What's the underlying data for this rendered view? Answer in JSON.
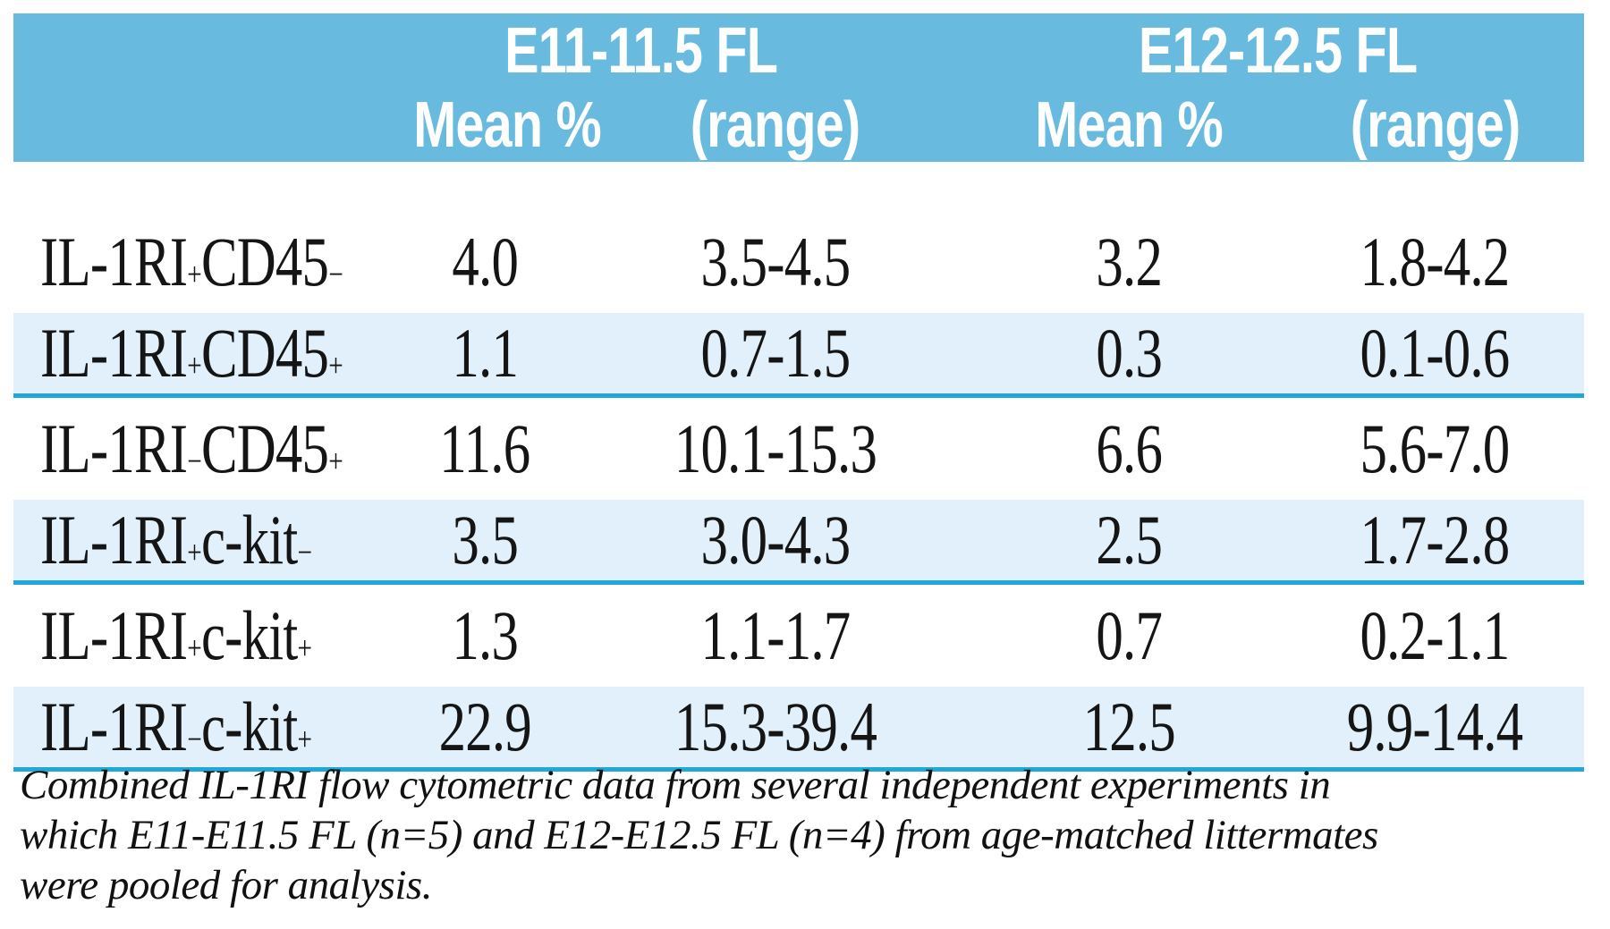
{
  "colors": {
    "header_bg": "#68bade",
    "header_text": "#ffffff",
    "stripe_bg": "#e1f0fa",
    "stripe_rule": "#21a7d8",
    "body_text": "#151515"
  },
  "header": {
    "groups": [
      {
        "title": "E11-11.5 FL",
        "mean_label": "Mean %",
        "range_label": "(range)"
      },
      {
        "title": "E12-12.5 FL",
        "mean_label": "Mean %",
        "range_label": "(range)"
      }
    ]
  },
  "rows": [
    {
      "label_parts": [
        {
          "text": "IL-1RI"
        },
        {
          "text": "+",
          "sup": true
        },
        {
          "text": "CD45"
        },
        {
          "text": "−",
          "sup": true
        }
      ],
      "e11_mean": "4.0",
      "e11_range": "3.5-4.5",
      "e12_mean": "3.2",
      "e12_range": "1.8-4.2",
      "striped": false
    },
    {
      "label_parts": [
        {
          "text": "IL-1RI"
        },
        {
          "text": "+",
          "sup": true
        },
        {
          "text": "CD45"
        },
        {
          "text": "+",
          "sup": true
        }
      ],
      "e11_mean": "1.1",
      "e11_range": "0.7-1.5",
      "e12_mean": "0.3",
      "e12_range": "0.1-0.6",
      "striped": true
    },
    {
      "label_parts": [
        {
          "text": "IL-1RI"
        },
        {
          "text": "−",
          "sup": true
        },
        {
          "text": "CD45"
        },
        {
          "text": "+",
          "sup": true
        }
      ],
      "e11_mean": "11.6",
      "e11_range": "10.1-15.3",
      "e12_mean": "6.6",
      "e12_range": "5.6-7.0",
      "striped": false
    },
    {
      "label_parts": [
        {
          "text": "IL-1RI"
        },
        {
          "text": "+",
          "sup": true
        },
        {
          "text": "c-kit"
        },
        {
          "text": "−",
          "sup": true
        }
      ],
      "e11_mean": "3.5",
      "e11_range": "3.0-4.3",
      "e12_mean": "2.5",
      "e12_range": "1.7-2.8",
      "striped": true
    },
    {
      "label_parts": [
        {
          "text": "IL-1RI"
        },
        {
          "text": "+",
          "sup": true
        },
        {
          "text": "c-kit"
        },
        {
          "text": "+",
          "sup": true
        }
      ],
      "e11_mean": "1.3",
      "e11_range": "1.1-1.7",
      "e12_mean": "0.7",
      "e12_range": "0.2-1.1",
      "striped": false
    },
    {
      "label_parts": [
        {
          "text": "IL-1RI"
        },
        {
          "text": "−",
          "sup": true
        },
        {
          "text": "c-kit"
        },
        {
          "text": "+",
          "sup": true
        }
      ],
      "e11_mean": "22.9",
      "e11_range": "15.3-39.4",
      "e12_mean": "12.5",
      "e12_range": "9.9-14.4",
      "striped": true
    }
  ],
  "footnote": {
    "lines": [
      "Combined IL-1RI flow cytometric data from several independent experiments in",
      "which E11-E11.5 FL (n=5) and E12-E12.5 FL (n=4) from age-matched littermates",
      "were pooled for analysis."
    ]
  }
}
